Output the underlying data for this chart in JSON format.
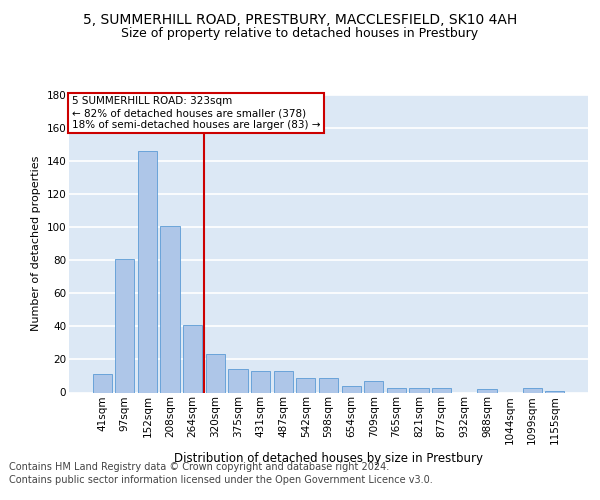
{
  "title": "5, SUMMERHILL ROAD, PRESTBURY, MACCLESFIELD, SK10 4AH",
  "subtitle": "Size of property relative to detached houses in Prestbury",
  "xlabel": "Distribution of detached houses by size in Prestbury",
  "ylabel": "Number of detached properties",
  "categories": [
    "41sqm",
    "97sqm",
    "152sqm",
    "208sqm",
    "264sqm",
    "320sqm",
    "375sqm",
    "431sqm",
    "487sqm",
    "542sqm",
    "598sqm",
    "654sqm",
    "709sqm",
    "765sqm",
    "821sqm",
    "877sqm",
    "932sqm",
    "988sqm",
    "1044sqm",
    "1099sqm",
    "1155sqm"
  ],
  "values": [
    11,
    81,
    146,
    101,
    41,
    23,
    14,
    13,
    13,
    9,
    9,
    4,
    7,
    3,
    3,
    3,
    0,
    2,
    0,
    3,
    1
  ],
  "bar_color": "#aec6e8",
  "bar_edgecolor": "#5b9bd5",
  "background_color": "#dce8f5",
  "grid_color": "#ffffff",
  "vline_color": "#cc0000",
  "vline_label": "5 SUMMERHILL ROAD: 323sqm",
  "annotation_line1": "← 82% of detached houses are smaller (378)",
  "annotation_line2": "18% of semi-detached houses are larger (83) →",
  "annotation_box_color": "#ffffff",
  "annotation_box_edgecolor": "#cc0000",
  "ylim": [
    0,
    180
  ],
  "yticks": [
    0,
    20,
    40,
    60,
    80,
    100,
    120,
    140,
    160,
    180
  ],
  "footer_line1": "Contains HM Land Registry data © Crown copyright and database right 2024.",
  "footer_line2": "Contains public sector information licensed under the Open Government Licence v3.0.",
  "title_fontsize": 10,
  "subtitle_fontsize": 9,
  "xlabel_fontsize": 8.5,
  "ylabel_fontsize": 8,
  "tick_fontsize": 7.5,
  "footer_fontsize": 7,
  "annotation_fontsize": 7.5
}
